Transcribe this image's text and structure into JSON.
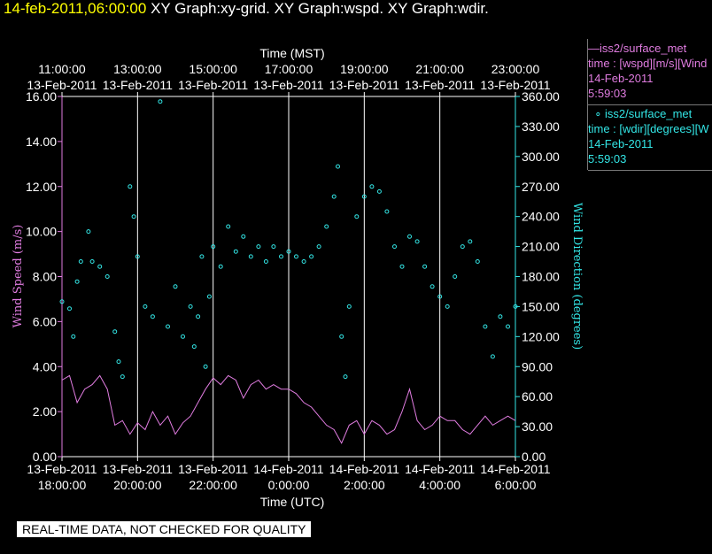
{
  "header": {
    "date": "14-feb-2011,06:00:00",
    "graphs": "XY Graph:xy-grid.  XY Graph:wspd.  XY Graph:wdir."
  },
  "legend": {
    "wspd": {
      "name": "iss2/surface_met",
      "desc": "time : [wspd][m/s][Wind",
      "date": "14-Feb-2011",
      "time": "5:59:03",
      "color": "#e07ce0"
    },
    "wdir": {
      "name": "iss2/surface_met",
      "desc": "time : [wdir][degrees][W",
      "date": "14-Feb-2011",
      "time": "5:59:03",
      "color": "#33e6e6"
    }
  },
  "disclaimer": "REAL-TIME DATA, NOT CHECKED FOR QUALITY",
  "chart_data": {
    "type": "line",
    "top_axis": {
      "label": "Time (MST)",
      "ticks": [
        {
          "time": "11:00:00",
          "date": "13-Feb-2011"
        },
        {
          "time": "13:00:00",
          "date": "13-Feb-2011"
        },
        {
          "time": "15:00:00",
          "date": "13-Feb-2011"
        },
        {
          "time": "17:00:00",
          "date": "13-Feb-2011"
        },
        {
          "time": "19:00:00",
          "date": "13-Feb-2011"
        },
        {
          "time": "21:00:00",
          "date": "13-Feb-2011"
        },
        {
          "time": "23:00:00",
          "date": "13-Feb-2011"
        }
      ]
    },
    "bottom_axis": {
      "label": "Time (UTC)",
      "ticks": [
        {
          "date": "13-Feb-2011",
          "time": "18:00:00"
        },
        {
          "date": "13-Feb-2011",
          "time": "20:00:00"
        },
        {
          "date": "13-Feb-2011",
          "time": "22:00:00"
        },
        {
          "date": "14-Feb-2011",
          "time": "0:00:00"
        },
        {
          "date": "14-Feb-2011",
          "time": "2:00:00"
        },
        {
          "date": "14-Feb-2011",
          "time": "4:00:00"
        },
        {
          "date": "14-Feb-2011",
          "time": "6:00:00"
        }
      ]
    },
    "x_range_utc_hours": [
      18,
      30
    ],
    "grid": "vertical",
    "left_axis": {
      "label": "Wind Speed (m/s)",
      "range": [
        0,
        16
      ],
      "ticks": [
        "0.00",
        "2.00",
        "4.00",
        "6.00",
        "8.00",
        "10.00",
        "12.00",
        "14.00",
        "16.00"
      ]
    },
    "right_axis": {
      "label": "Wind Direction (degrees)",
      "range": [
        0,
        360
      ],
      "ticks": [
        "0.00",
        "30.00",
        "60.00",
        "90.00",
        "120.00",
        "150.00",
        "180.00",
        "210.00",
        "240.00",
        "270.00",
        "300.00",
        "330.00",
        "360.00"
      ]
    },
    "series": [
      {
        "name": "wspd",
        "style": "line",
        "color": "#e07ce0",
        "points": [
          [
            18.0,
            3.4
          ],
          [
            18.2,
            3.6
          ],
          [
            18.4,
            2.4
          ],
          [
            18.6,
            3.0
          ],
          [
            18.8,
            3.2
          ],
          [
            19.0,
            3.6
          ],
          [
            19.2,
            3.0
          ],
          [
            19.4,
            1.4
          ],
          [
            19.6,
            1.6
          ],
          [
            19.8,
            1.0
          ],
          [
            20.0,
            1.5
          ],
          [
            20.2,
            1.2
          ],
          [
            20.4,
            2.0
          ],
          [
            20.6,
            1.4
          ],
          [
            20.8,
            1.8
          ],
          [
            21.0,
            1.0
          ],
          [
            21.2,
            1.5
          ],
          [
            21.4,
            1.8
          ],
          [
            21.6,
            2.4
          ],
          [
            21.8,
            3.0
          ],
          [
            22.0,
            3.5
          ],
          [
            22.2,
            3.2
          ],
          [
            22.4,
            3.6
          ],
          [
            22.6,
            3.4
          ],
          [
            22.8,
            2.6
          ],
          [
            23.0,
            3.2
          ],
          [
            23.2,
            3.4
          ],
          [
            23.4,
            3.0
          ],
          [
            23.6,
            3.2
          ],
          [
            23.8,
            3.0
          ],
          [
            24.0,
            3.0
          ],
          [
            24.2,
            2.8
          ],
          [
            24.4,
            2.4
          ],
          [
            24.6,
            2.2
          ],
          [
            24.8,
            1.8
          ],
          [
            25.0,
            1.4
          ],
          [
            25.2,
            1.2
          ],
          [
            25.4,
            0.6
          ],
          [
            25.6,
            1.4
          ],
          [
            25.8,
            1.6
          ],
          [
            26.0,
            1.0
          ],
          [
            26.2,
            1.6
          ],
          [
            26.4,
            1.4
          ],
          [
            26.6,
            1.0
          ],
          [
            26.8,
            1.2
          ],
          [
            27.0,
            2.0
          ],
          [
            27.2,
            3.0
          ],
          [
            27.4,
            1.6
          ],
          [
            27.6,
            1.2
          ],
          [
            27.8,
            1.4
          ],
          [
            28.0,
            1.8
          ],
          [
            28.2,
            1.6
          ],
          [
            28.4,
            1.6
          ],
          [
            28.6,
            1.2
          ],
          [
            28.8,
            1.0
          ],
          [
            29.0,
            1.4
          ],
          [
            29.2,
            1.8
          ],
          [
            29.4,
            1.4
          ],
          [
            29.6,
            1.6
          ],
          [
            29.8,
            1.8
          ],
          [
            30.0,
            1.6
          ]
        ]
      },
      {
        "name": "wdir",
        "style": "points",
        "color": "#33e6e6",
        "points": [
          [
            18.0,
            155
          ],
          [
            18.2,
            148
          ],
          [
            18.3,
            120
          ],
          [
            18.4,
            175
          ],
          [
            18.5,
            195
          ],
          [
            18.7,
            225
          ],
          [
            18.8,
            195
          ],
          [
            19.0,
            190
          ],
          [
            19.2,
            180
          ],
          [
            19.4,
            125
          ],
          [
            19.5,
            95
          ],
          [
            19.6,
            80
          ],
          [
            19.8,
            270
          ],
          [
            19.9,
            240
          ],
          [
            20.0,
            200
          ],
          [
            20.2,
            150
          ],
          [
            20.4,
            140
          ],
          [
            20.6,
            355
          ],
          [
            20.8,
            130
          ],
          [
            21.0,
            170
          ],
          [
            21.2,
            120
          ],
          [
            21.4,
            150
          ],
          [
            21.5,
            110
          ],
          [
            21.6,
            140
          ],
          [
            21.7,
            200
          ],
          [
            21.8,
            90
          ],
          [
            21.9,
            160
          ],
          [
            22.0,
            210
          ],
          [
            22.2,
            190
          ],
          [
            22.4,
            230
          ],
          [
            22.6,
            205
          ],
          [
            22.8,
            220
          ],
          [
            23.0,
            200
          ],
          [
            23.2,
            210
          ],
          [
            23.4,
            195
          ],
          [
            23.6,
            210
          ],
          [
            23.8,
            200
          ],
          [
            24.0,
            205
          ],
          [
            24.2,
            200
          ],
          [
            24.4,
            195
          ],
          [
            24.6,
            200
          ],
          [
            24.8,
            210
          ],
          [
            25.0,
            230
          ],
          [
            25.2,
            260
          ],
          [
            25.3,
            290
          ],
          [
            25.4,
            120
          ],
          [
            25.5,
            80
          ],
          [
            25.6,
            150
          ],
          [
            25.8,
            240
          ],
          [
            26.0,
            260
          ],
          [
            26.2,
            270
          ],
          [
            26.4,
            265
          ],
          [
            26.6,
            245
          ],
          [
            26.8,
            210
          ],
          [
            27.0,
            190
          ],
          [
            27.2,
            220
          ],
          [
            27.4,
            215
          ],
          [
            27.6,
            190
          ],
          [
            27.8,
            170
          ],
          [
            28.0,
            160
          ],
          [
            28.2,
            150
          ],
          [
            28.4,
            180
          ],
          [
            28.6,
            210
          ],
          [
            28.8,
            215
          ],
          [
            29.0,
            195
          ],
          [
            29.2,
            130
          ],
          [
            29.4,
            100
          ],
          [
            29.6,
            140
          ],
          [
            29.8,
            130
          ],
          [
            30.0,
            150
          ]
        ]
      }
    ]
  }
}
